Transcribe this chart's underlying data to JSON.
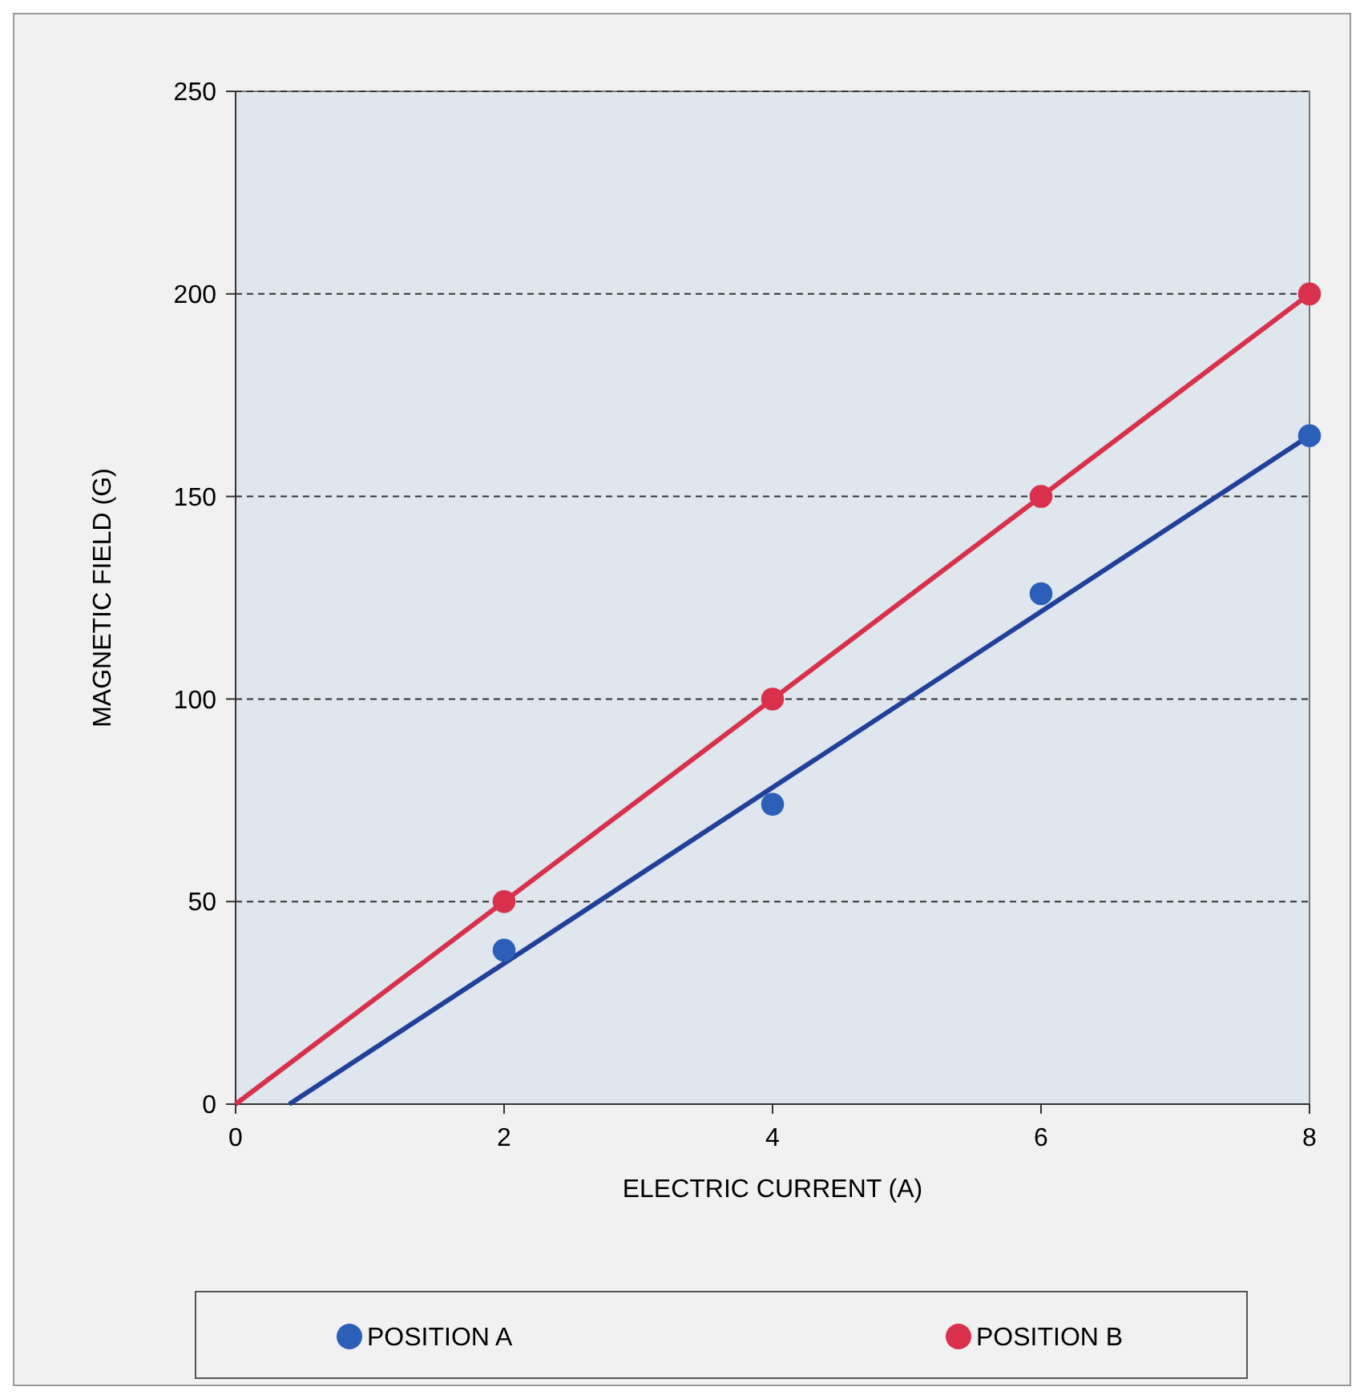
{
  "chart_data": {
    "type": "scatter",
    "xlabel": "ELECTRIC CURRENT (A)",
    "ylabel": "MAGNETIC FIELD (G)",
    "x": [
      2,
      4,
      6,
      8
    ],
    "series": [
      {
        "name": "POSITION A",
        "color": "#2b5fb8",
        "values": [
          38,
          74,
          126,
          165
        ]
      },
      {
        "name": "POSITION B",
        "color": "#d9304b",
        "values": [
          50,
          100,
          150,
          200
        ]
      },
      {
        "type": "line",
        "marker": "none",
        "color": "#20409a",
        "x": [
          0.4,
          8
        ],
        "values": [
          0,
          165
        ]
      },
      {
        "type": "line",
        "marker": "none",
        "color": "#d9304b",
        "x": [
          0,
          8
        ],
        "values": [
          0,
          200
        ]
      }
    ],
    "xlim": [
      0,
      8
    ],
    "xticks": [
      0,
      2,
      4,
      6,
      8
    ],
    "ylim": [
      0,
      250
    ],
    "yticks": [
      0,
      50,
      100,
      150,
      200,
      250
    ],
    "grid": "y",
    "legend": "bottom",
    "marker": "circle"
  }
}
